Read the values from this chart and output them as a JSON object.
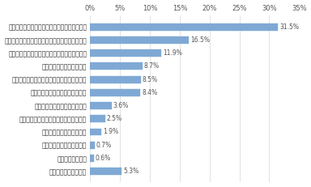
{
  "categories": [
    "安全な住まい（耐震、耐火、セキュリティ等）",
    "快適な住まい（冬温かく夏涼しい、空気浄化等）",
    "長く住める（資産価値が持続、劣化しづらい）",
    "周辺環境や通勤等の利便性",
    "家族のライフスタイルにあった間取り、空間",
    "日当たり、風通し、採望等の環境",
    "省エネルギー（光熱費が安い）",
    "設備（キッチンやバスルーム等）の充実",
    "内観の意匠性（デザイン）",
    "外観の意匠性（デザイン）",
    "地域コミュニティ",
    "あてはまるものはない"
  ],
  "values": [
    31.5,
    16.5,
    11.9,
    8.7,
    8.5,
    8.4,
    3.6,
    2.5,
    1.9,
    0.7,
    0.6,
    5.3
  ],
  "bar_color": "#7FA9D4",
  "xlim": [
    0,
    35
  ],
  "xticks": [
    0,
    5,
    10,
    15,
    20,
    25,
    30,
    35
  ],
  "label_fontsize": 5.5,
  "value_fontsize": 5.5,
  "tick_fontsize": 6.0,
  "background_color": "#ffffff",
  "grid_color": "#d8d8d8"
}
